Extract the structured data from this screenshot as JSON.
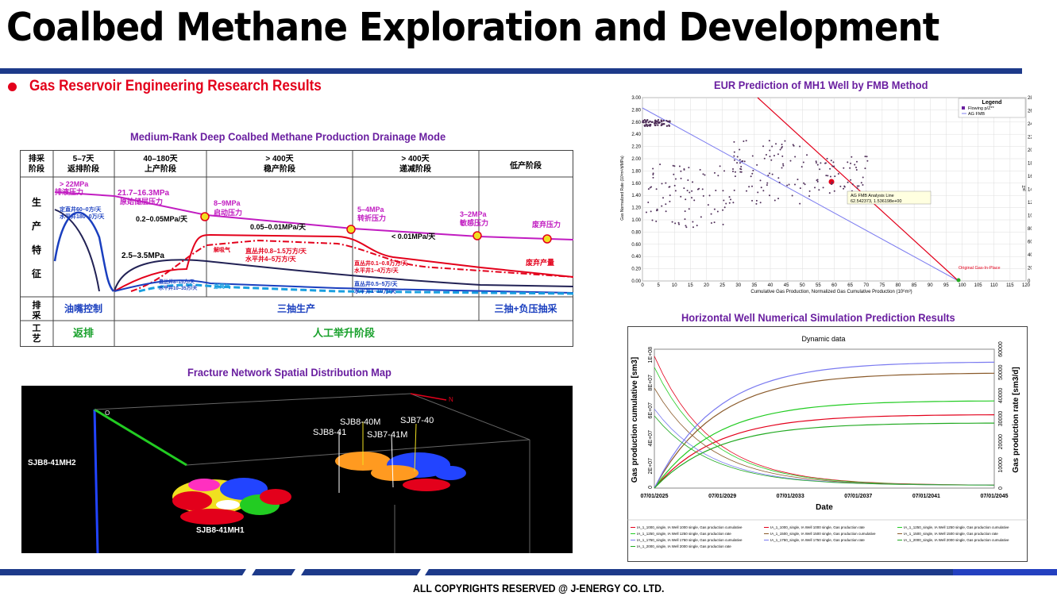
{
  "header": {
    "title": "Coalbed Methane Exploration and Development",
    "subtitle": "Gas Reservoir Engineering Research Results"
  },
  "colors": {
    "accent_red": "#e3001b",
    "band_blue": "#1d3a8a",
    "title_purple": "#6a1fa0"
  },
  "drainage": {
    "title": "Medium-Rank Deep Coalbed Methane Production Drainage Mode",
    "row_header": "排采\n阶段",
    "stages": [
      {
        "days": "5–7天",
        "name": "返排阶段"
      },
      {
        "days": "40–180天",
        "name": "上产阶段"
      },
      {
        "days": "> 400天",
        "name": "稳产阶段"
      },
      {
        "days": "> 400天",
        "name": "递减阶段"
      },
      {
        "days": "",
        "name": "低产阶段"
      }
    ],
    "side_label": [
      "生",
      "产",
      "特",
      "征"
    ],
    "craft_label": [
      "排",
      "采",
      "工",
      "艺"
    ],
    "craft_row": [
      "油嘴控制",
      "三抽生产",
      "三抽+负压抽采"
    ],
    "phase_row": [
      "返排",
      "人工举升阶段"
    ],
    "annotations": {
      "a1": "> 22MPa",
      "a2": "排液压力",
      "a3": "定直井60–0方/天",
      "a4": "水平井180–0万/天",
      "a5": "21.7–16.3MPa",
      "a6": "原始储层压力",
      "a7": "0.2–0.05MPa/天",
      "a8": "2.5–3.5MPa",
      "a9": "直丛井8–15方/天",
      "a10": "水平井10–35方/天",
      "a11": "8–9MPa",
      "a12": "启动压力",
      "a13": "0.05–0.01MPa/天",
      "a14": "解吸气",
      "a15": "直丛井0.8–1.5万方/天",
      "a16": "水平井4–5万方/天",
      "a17": "游离气",
      "a18": "5–4MPa",
      "a19": "转折压力",
      "a20": "< 0.01MPa/天",
      "a21": "直丛井0.1–0.8万方/天",
      "a22": "水平井1–4万方/天",
      "a23": "直丛井0.5–5万/天",
      "a24": "水平井1–10万/天",
      "a25": "3–2MPa",
      "a26": "敏感压力",
      "a27": "废弃压力",
      "a28": "废弃产量"
    }
  },
  "fracture": {
    "title": "Fracture Network Spatial Distribution Map",
    "labels": {
      "mh2": "SJB8-41MH2",
      "mh1": "SJB8-41MH1",
      "w1": "SJB8-41",
      "w2": "SJB8-40M",
      "w3": "SJB7-41M",
      "w4": "SJB7-40",
      "origin": "O",
      "n": "N"
    }
  },
  "eur": {
    "title": "EUR Prediction of MH1 Well by FMB Method",
    "legend_title": "Legend",
    "legend": [
      "Flowing p/Z**",
      "AG FMB"
    ],
    "y_label": "Gas Normalized Rate (10³m³/d/MPa)",
    "y2_label": "p/Z",
    "x_label": "Cumulative Gas Production, Normalized Gas Cumulative Production (10⁶m³)",
    "analysis_label": "AG FMB Analysis Line",
    "analysis_values": "62.542373, 1.536198e+00",
    "ogip_label": "Original Gas-In-Place",
    "y_ticks": [
      "3.00",
      "2.80",
      "2.60",
      "2.40",
      "2.20",
      "2.00",
      "1.80",
      "1.60",
      "1.40",
      "1.20",
      "1.00",
      "0.80",
      "0.60",
      "0.40",
      "0.20",
      "0.00"
    ],
    "y2_ticks": [
      "28000",
      "26000",
      "24000",
      "22000",
      "20000",
      "18000",
      "16000",
      "14000",
      "12000",
      "10000",
      "8000",
      "6000",
      "4000",
      "2000",
      "0"
    ],
    "x_ticks": [
      "0",
      "5",
      "10",
      "15",
      "20",
      "25",
      "30",
      "35",
      "40",
      "45",
      "50",
      "55",
      "60",
      "65",
      "70",
      "75",
      "80",
      "85",
      "90",
      "95",
      "100",
      "105",
      "110",
      "115",
      "120"
    ]
  },
  "sim": {
    "title": "Horizontal Well Numerical Simulation Prediction Results",
    "chart_title": "Dynamic data",
    "y_label": "Gas production cumulative [sm3]",
    "y2_label": "Gas production rate [sm3/d]",
    "x_label": "Date",
    "y_ticks": [
      "0",
      "2E+07",
      "4E+07",
      "6E+07",
      "8E+07",
      "1E+08"
    ],
    "y2_ticks": [
      "0",
      "10000",
      "20000",
      "30000",
      "40000",
      "50000",
      "60000"
    ],
    "x_ticks": [
      "07/01/2025",
      "07/01/2029",
      "07/01/2033",
      "07/01/2037",
      "07/01/2041",
      "07/01/2045"
    ],
    "legend": [
      "IA_1_1000_single, IA Well 1000 single, Gas production cumulative",
      "IA_1_1000_single, IA Well 1000 single, Gas production rate",
      "IA_1_1250_single, IA Well 1250 single, Gas production cumulative",
      "IA_1_1250_single, IA Well 1250 single, Gas production rate",
      "IA_1_1500_single, IA Well 1500 single, Gas production cumulative",
      "IA_1_1500_single, IA Well 1500 single, Gas production rate",
      "IA_1_1750_single, IA Well 1750 single, Gas production cumulative",
      "IA_1_1750_single, IA Well 1750 single, Gas production rate",
      "IA_1_2000_single, IA Well 2000 single, Gas production cumulative",
      "IA_1_2000_single, IA Well 2000 single, Gas production rate"
    ]
  },
  "footer": {
    "copyright": "ALL COPYRIGHTS RESERVED @ J-ENERGY CO. LTD."
  }
}
